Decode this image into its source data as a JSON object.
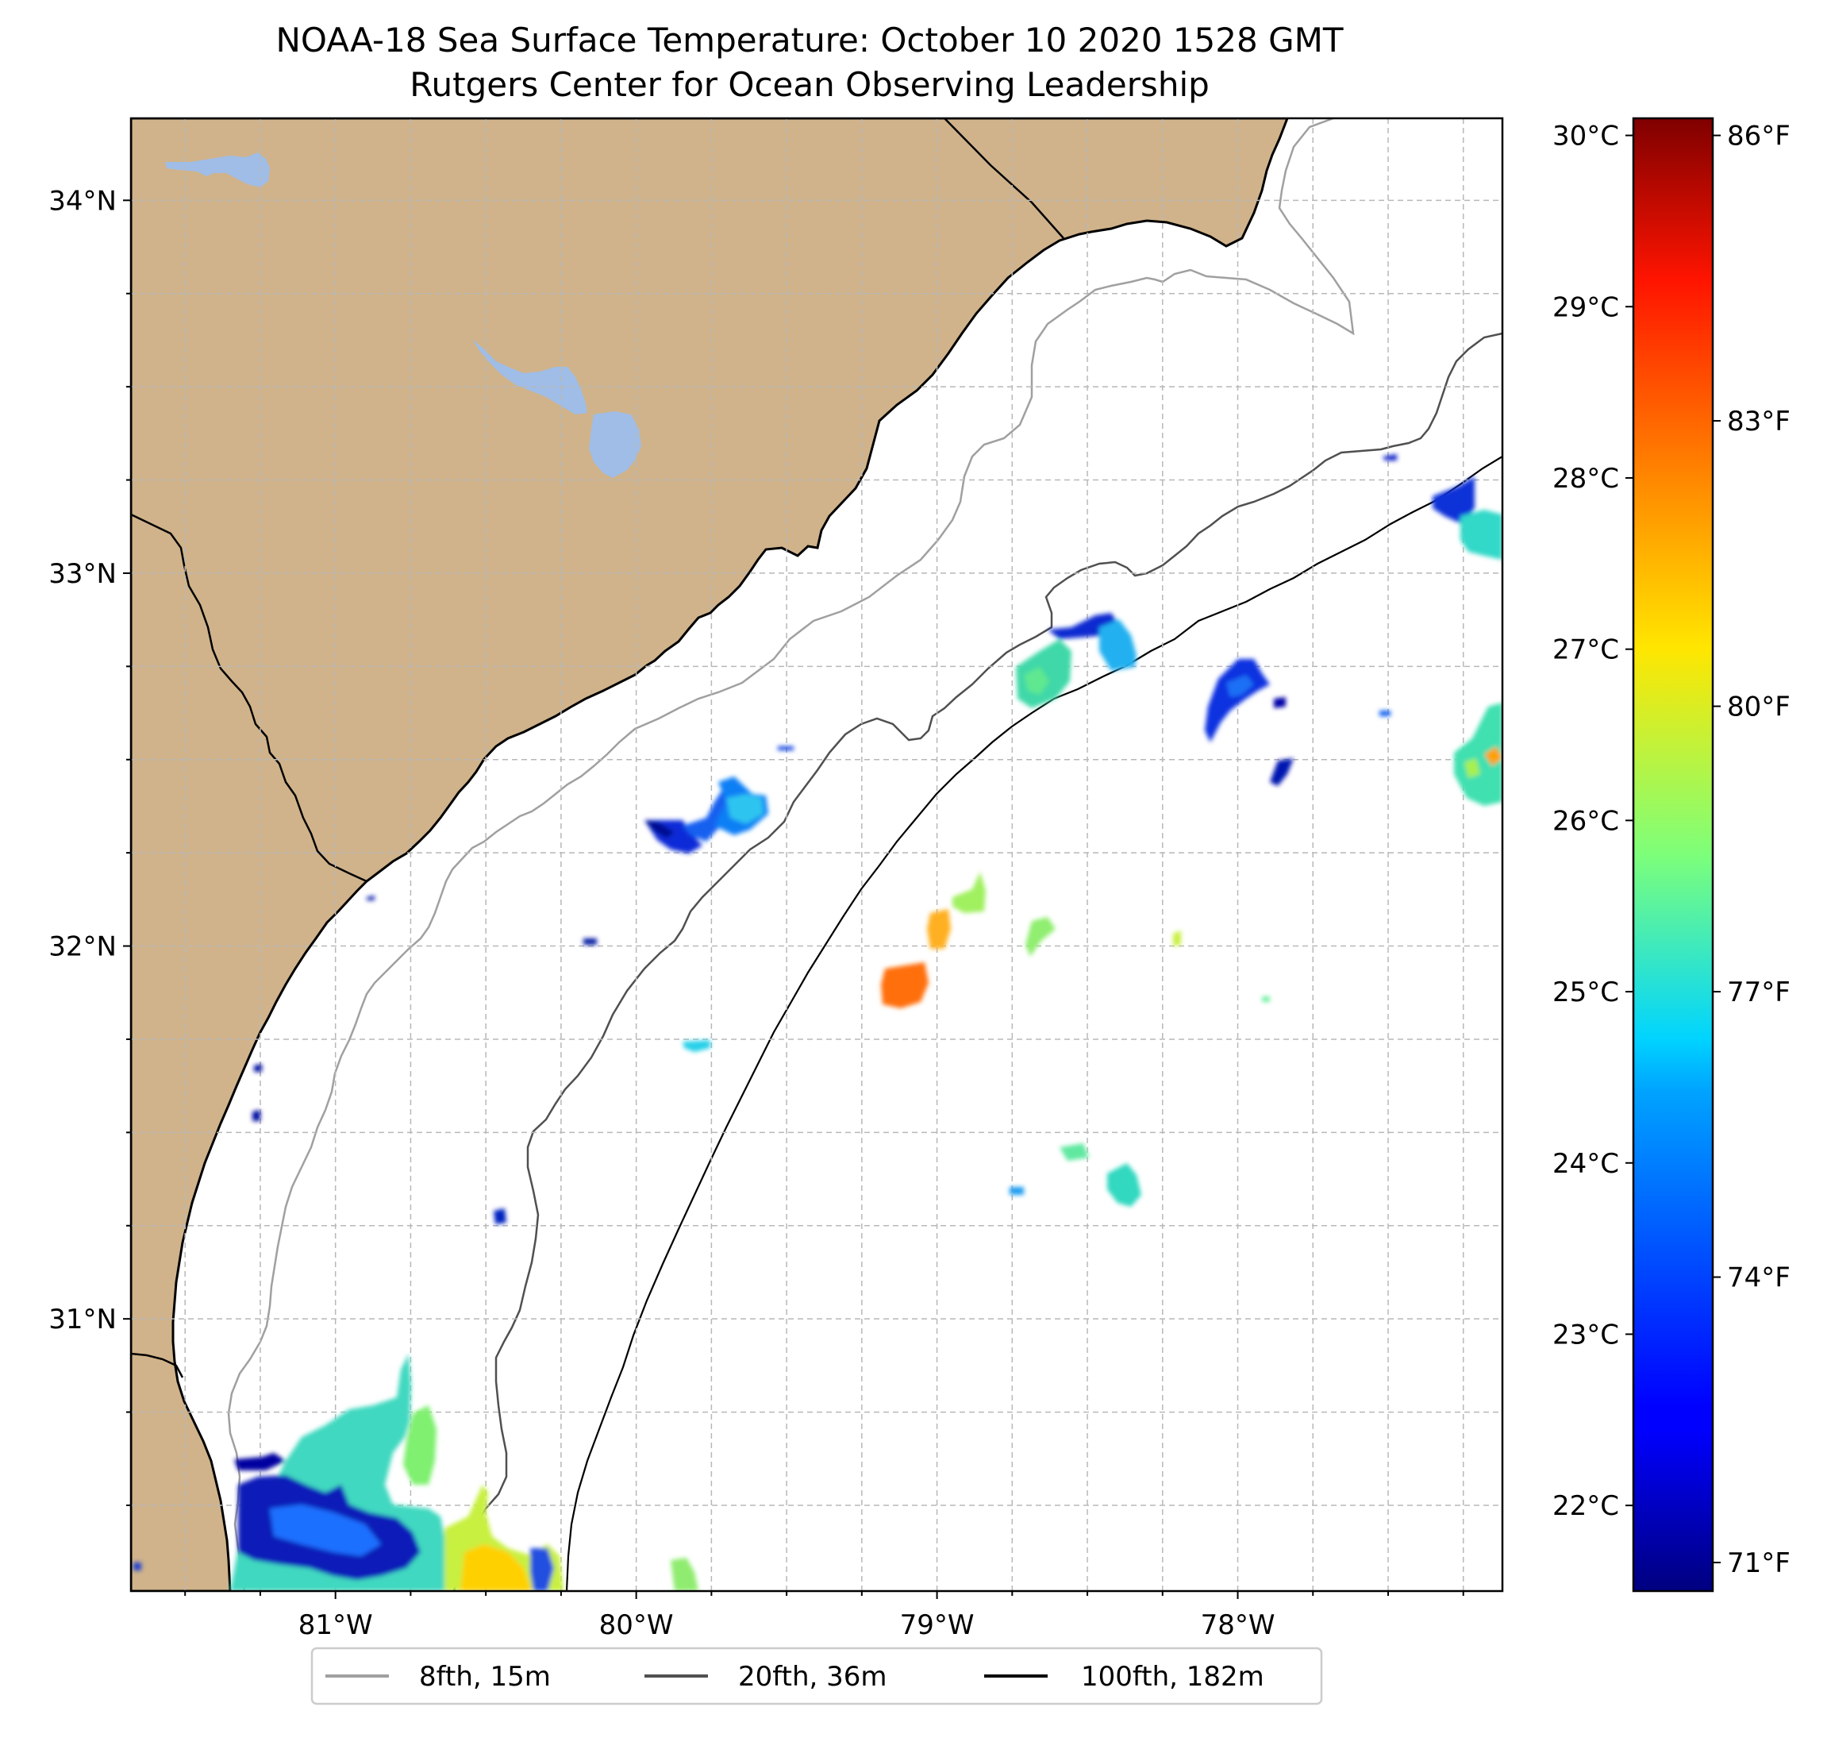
{
  "title": {
    "line1": "NOAA-18 Sea Surface Temperature: October 10 2020 1528 GMT",
    "line2": "Rutgers Center for Ocean Observing Leadership"
  },
  "map": {
    "lon_range": [
      -81.68,
      -77.12
    ],
    "lat_range": [
      30.27,
      34.22
    ],
    "lat_ticks": [
      {
        "value": 34,
        "label": "34°N"
      },
      {
        "value": 33,
        "label": "33°N"
      },
      {
        "value": 32,
        "label": "32°N"
      },
      {
        "value": 31,
        "label": "31°N"
      }
    ],
    "lon_ticks": [
      {
        "value": -81,
        "label": "81°W"
      },
      {
        "value": -80,
        "label": "80°W"
      },
      {
        "value": -79,
        "label": "79°W"
      },
      {
        "value": -78,
        "label": "78°W"
      }
    ],
    "grid": "dashed, every 0.25°",
    "colors": {
      "land": "#d0b38b",
      "lakes": "#9fbde6",
      "ocean": "#ffffff",
      "coast": "#000000",
      "grid": "#b8b8b8"
    }
  },
  "colorbar": {
    "colormap": "jet",
    "range_c": [
      21.5,
      30.1
    ],
    "c_ticks": [
      {
        "value": 30,
        "label": "30°C"
      },
      {
        "value": 29,
        "label": "29°C"
      },
      {
        "value": 28,
        "label": "28°C"
      },
      {
        "value": 27,
        "label": "27°C"
      },
      {
        "value": 26,
        "label": "26°C"
      },
      {
        "value": 25,
        "label": "25°C"
      },
      {
        "value": 24,
        "label": "24°C"
      },
      {
        "value": 23,
        "label": "23°C"
      },
      {
        "value": 22,
        "label": "22°C"
      }
    ],
    "f_ticks": [
      {
        "value": 86,
        "label": "86°F"
      },
      {
        "value": 83,
        "label": "83°F"
      },
      {
        "value": 80,
        "label": "80°F"
      },
      {
        "value": 77,
        "label": "77°F"
      },
      {
        "value": 74,
        "label": "74°F"
      },
      {
        "value": 71,
        "label": "71°F"
      }
    ]
  },
  "legend": [
    {
      "label": "8fth, 15m",
      "color": "#a0a0a0"
    },
    {
      "label": "20fth, 36m",
      "color": "#505050"
    },
    {
      "label": "100fth, 182m",
      "color": "#000000"
    }
  ],
  "chart_data": {
    "type": "heatmap",
    "description_units": "lon (°E), lat (°N), sea surface temperature (°C)",
    "sst_patches": [
      {
        "lon": -79.8,
        "lat": 32.3,
        "temp_c": 23.4
      },
      {
        "lon": -79.6,
        "lat": 32.3,
        "temp_c": 24.2
      },
      {
        "lon": -78.6,
        "lat": 32.65,
        "temp_c": 25.5
      },
      {
        "lon": -78.35,
        "lat": 32.72,
        "temp_c": 24.3
      },
      {
        "lon": -77.95,
        "lat": 32.6,
        "temp_c": 22.8
      },
      {
        "lon": -77.88,
        "lat": 32.38,
        "temp_c": 22.5
      },
      {
        "lon": -77.3,
        "lat": 33.12,
        "temp_c": 24.5
      },
      {
        "lon": -77.22,
        "lat": 32.45,
        "temp_c": 26.3
      },
      {
        "lon": -79.05,
        "lat": 31.95,
        "temp_c": 27.9
      },
      {
        "lon": -78.92,
        "lat": 32.05,
        "temp_c": 26.8
      },
      {
        "lon": -79.12,
        "lat": 31.8,
        "temp_c": 27.6
      },
      {
        "lon": -78.75,
        "lat": 31.9,
        "temp_c": 26.4
      },
      {
        "lon": -78.35,
        "lat": 31.22,
        "temp_c": 25.0
      },
      {
        "lon": -78.48,
        "lat": 31.3,
        "temp_c": 26.0
      },
      {
        "lon": -81.05,
        "lat": 30.35,
        "temp_c": 23.0
      },
      {
        "lon": -80.85,
        "lat": 30.55,
        "temp_c": 24.8
      },
      {
        "lon": -80.55,
        "lat": 30.35,
        "temp_c": 26.5
      },
      {
        "lon": -80.45,
        "lat": 30.32,
        "temp_c": 27.6
      },
      {
        "lon": -79.85,
        "lat": 30.32,
        "temp_c": 26.2
      }
    ]
  }
}
